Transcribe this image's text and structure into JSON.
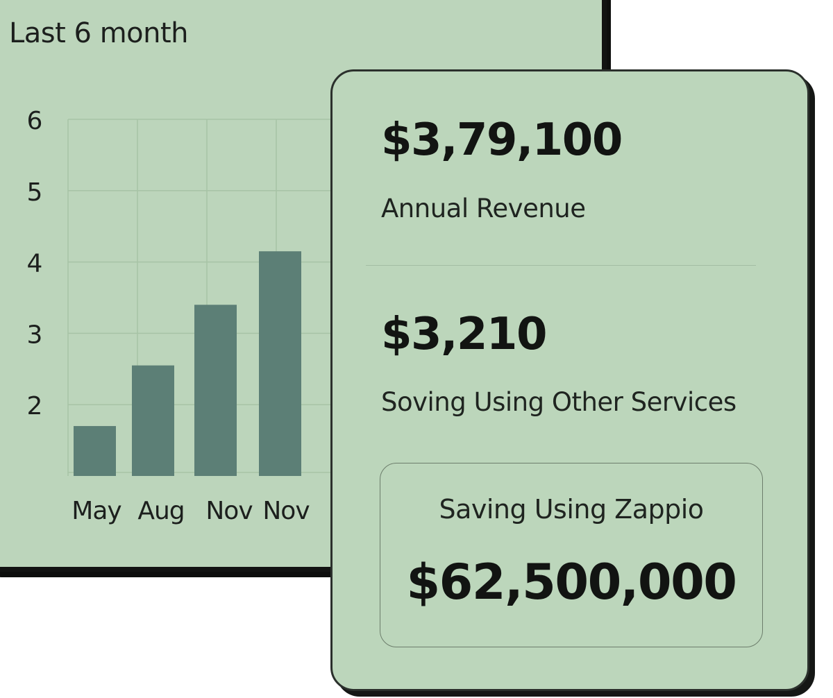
{
  "chart_card": {
    "title": "Last 6 month"
  },
  "chart_data": {
    "type": "bar",
    "categories": [
      "May",
      "Aug",
      "Nov",
      "Nov"
    ],
    "values": [
      1.7,
      2.55,
      3.4,
      4.15
    ],
    "y_ticks": [
      "2",
      "3",
      "4",
      "5",
      "6"
    ],
    "ylim": [
      1,
      6
    ],
    "grid": true,
    "colors": {
      "bar": "#5c7f76",
      "grid": "#a7c3a6",
      "card": "#bcd5bb"
    }
  },
  "stats": {
    "annual_revenue": {
      "value": "$3,79,100",
      "label": "Annual Revenue"
    },
    "other_services": {
      "value": "$3,210",
      "label": "Soving Using Other Services"
    },
    "zappio": {
      "label": "Saving Using Zappio",
      "value": "$62,500,000"
    }
  }
}
